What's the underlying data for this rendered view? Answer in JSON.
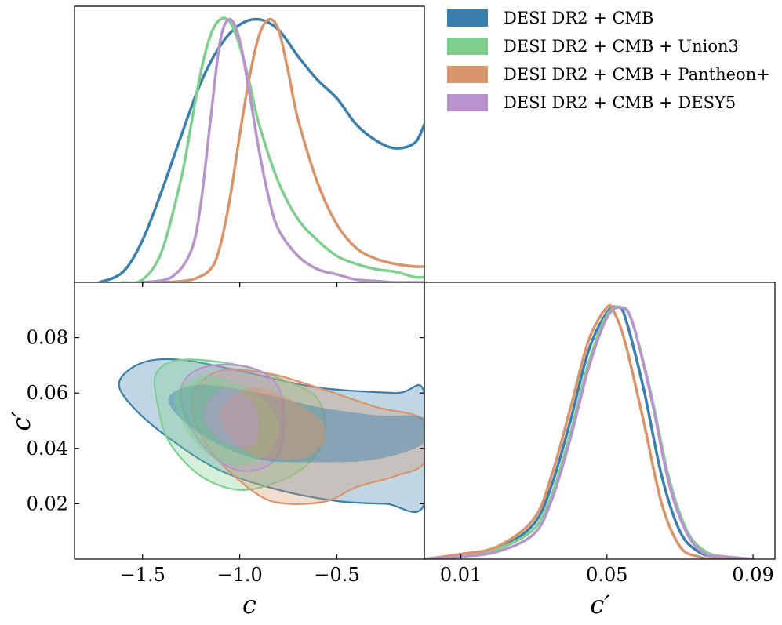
{
  "chart_data": {
    "type": "corner_plot",
    "parameters": [
      "c",
      "c'"
    ],
    "axis_labels": {
      "c": "c",
      "cprime": "c′"
    },
    "series": [
      {
        "name": "DESI DR2 + CMB",
        "color": "#3b7fad"
      },
      {
        "name": "DESI DR2 + CMB + Union3",
        "color": "#7fcf8f"
      },
      {
        "name": "DESI DR2 + CMB + Pantheon+",
        "color": "#d8946a"
      },
      {
        "name": "DESI DR2 + CMB + DESY5",
        "color": "#b994cc"
      }
    ],
    "panels": [
      {
        "id": "c_marginal",
        "type": "line",
        "x_range": [
          -1.85,
          -0.05
        ],
        "y_range": [
          0,
          1.05
        ],
        "series": [
          {
            "name": "DESI DR2 + CMB",
            "x": [
              -1.72,
              -1.6,
              -1.5,
              -1.4,
              -1.3,
              -1.2,
              -1.1,
              -1.0,
              -0.9,
              -0.8,
              -0.7,
              -0.6,
              -0.5,
              -0.4,
              -0.3,
              -0.2,
              -0.1,
              -0.05
            ],
            "y": [
              0,
              0.04,
              0.16,
              0.35,
              0.56,
              0.76,
              0.9,
              0.98,
              1.0,
              0.96,
              0.86,
              0.77,
              0.7,
              0.6,
              0.54,
              0.51,
              0.53,
              0.6
            ]
          },
          {
            "name": "DESI DR2 + CMB + Union3",
            "x": [
              -1.6,
              -1.5,
              -1.4,
              -1.3,
              -1.25,
              -1.2,
              -1.15,
              -1.1,
              -1.05,
              -1.0,
              -0.95,
              -0.9,
              -0.8,
              -0.7,
              -0.6,
              -0.5,
              -0.4,
              -0.3,
              -0.2,
              -0.1,
              -0.05
            ],
            "y": [
              0,
              0.01,
              0.12,
              0.4,
              0.6,
              0.8,
              0.94,
              1.0,
              0.99,
              0.9,
              0.76,
              0.6,
              0.38,
              0.24,
              0.16,
              0.1,
              0.07,
              0.05,
              0.04,
              0.02,
              0.02
            ]
          },
          {
            "name": "DESI DR2 + CMB + Pantheon+",
            "x": [
              -1.4,
              -1.25,
              -1.15,
              -1.1,
              -1.05,
              -1.0,
              -0.95,
              -0.9,
              -0.85,
              -0.8,
              -0.75,
              -0.7,
              -0.6,
              -0.5,
              -0.4,
              -0.3,
              -0.2,
              -0.1,
              -0.05
            ],
            "y": [
              0,
              0.01,
              0.05,
              0.14,
              0.32,
              0.56,
              0.78,
              0.94,
              1.0,
              0.96,
              0.8,
              0.62,
              0.38,
              0.22,
              0.13,
              0.09,
              0.07,
              0.06,
              0.06
            ]
          },
          {
            "name": "DESI DR2 + CMB + DESY5",
            "x": [
              -1.5,
              -1.35,
              -1.25,
              -1.2,
              -1.15,
              -1.1,
              -1.05,
              -1.0,
              -0.95,
              -0.9,
              -0.85,
              -0.8,
              -0.7,
              -0.6,
              -0.5,
              -0.4,
              -0.3,
              -0.2,
              -0.1,
              -0.05
            ],
            "y": [
              0,
              0.02,
              0.12,
              0.3,
              0.62,
              0.92,
              1.0,
              0.92,
              0.72,
              0.5,
              0.32,
              0.2,
              0.1,
              0.05,
              0.03,
              0.01,
              0.005,
              0,
              0,
              0
            ]
          }
        ]
      },
      {
        "id": "cprime_marginal",
        "type": "line",
        "x_range": [
          0.0,
          0.096
        ],
        "y_range": [
          0,
          1.1
        ],
        "series": [
          {
            "name": "DESI DR2 + CMB",
            "x": [
              0.0,
              0.01,
              0.02,
              0.03,
              0.035,
              0.04,
              0.045,
              0.05,
              0.053,
              0.055,
              0.06,
              0.065,
              0.07,
              0.075,
              0.08,
              0.09
            ],
            "y": [
              0,
              0.01,
              0.04,
              0.14,
              0.3,
              0.55,
              0.83,
              0.98,
              1.0,
              0.96,
              0.68,
              0.33,
              0.11,
              0.03,
              0.01,
              0
            ]
          },
          {
            "name": "DESI DR2 + CMB + Union3",
            "x": [
              0.0,
              0.01,
              0.02,
              0.03,
              0.035,
              0.04,
              0.045,
              0.05,
              0.054,
              0.057,
              0.062,
              0.067,
              0.072,
              0.077,
              0.082,
              0.09
            ],
            "y": [
              0,
              0.01,
              0.04,
              0.12,
              0.26,
              0.5,
              0.78,
              0.97,
              1.0,
              0.94,
              0.66,
              0.32,
              0.11,
              0.03,
              0.01,
              0
            ]
          },
          {
            "name": "DESI DR2 + CMB + Pantheon+",
            "x": [
              0.0,
              0.01,
              0.02,
              0.03,
              0.035,
              0.04,
              0.045,
              0.05,
              0.052,
              0.055,
              0.06,
              0.065,
              0.07,
              0.075,
              0.08,
              0.09
            ],
            "y": [
              0,
              0.02,
              0.05,
              0.16,
              0.34,
              0.6,
              0.87,
              1.0,
              0.98,
              0.86,
              0.55,
              0.22,
              0.05,
              0.01,
              0,
              0
            ]
          },
          {
            "name": "DESI DR2 + CMB + DESY5",
            "x": [
              0.0,
              0.01,
              0.02,
              0.03,
              0.035,
              0.04,
              0.045,
              0.05,
              0.054,
              0.057,
              0.062,
              0.067,
              0.072,
              0.077,
              0.082,
              0.09
            ],
            "y": [
              0,
              0.01,
              0.03,
              0.1,
              0.24,
              0.48,
              0.76,
              0.96,
              1.0,
              0.94,
              0.65,
              0.3,
              0.1,
              0.02,
              0.01,
              0
            ]
          }
        ]
      },
      {
        "id": "joint_c_cprime",
        "type": "contour",
        "x_range": [
          -1.85,
          -0.05
        ],
        "y_range": [
          0.0,
          0.1
        ],
        "levels": [
          "68%",
          "95%"
        ],
        "series": [
          {
            "name": "DESI DR2 + CMB",
            "outer": [
              [
                -1.62,
                0.064
              ],
              [
                -1.5,
                0.071
              ],
              [
                -1.3,
                0.072
              ],
              [
                -1.0,
                0.068
              ],
              [
                -0.6,
                0.062
              ],
              [
                -0.2,
                0.06
              ],
              [
                -0.05,
                0.06
              ],
              [
                -0.05,
                0.02
              ],
              [
                -0.25,
                0.02
              ],
              [
                -0.5,
                0.021
              ],
              [
                -0.8,
                0.025
              ],
              [
                -1.1,
                0.032
              ],
              [
                -1.35,
                0.043
              ],
              [
                -1.55,
                0.055
              ]
            ],
            "inner": [
              [
                -1.36,
                0.059
              ],
              [
                -1.2,
                0.063
              ],
              [
                -0.9,
                0.06
              ],
              [
                -0.6,
                0.055
              ],
              [
                -0.3,
                0.052
              ],
              [
                -0.05,
                0.051
              ],
              [
                -0.05,
                0.042
              ],
              [
                -0.3,
                0.036
              ],
              [
                -0.6,
                0.035
              ],
              [
                -0.9,
                0.036
              ],
              [
                -1.15,
                0.043
              ],
              [
                -1.32,
                0.052
              ]
            ]
          },
          {
            "name": "DESI DR2 + CMB + Union3",
            "outer": [
              [
                -1.43,
                0.067
              ],
              [
                -1.3,
                0.072
              ],
              [
                -1.0,
                0.07
              ],
              [
                -0.75,
                0.064
              ],
              [
                -0.6,
                0.058
              ],
              [
                -0.56,
                0.046
              ],
              [
                -0.64,
                0.035
              ],
              [
                -0.8,
                0.028
              ],
              [
                -1.0,
                0.025
              ],
              [
                -1.2,
                0.03
              ],
              [
                -1.36,
                0.042
              ],
              [
                -1.42,
                0.055
              ]
            ],
            "inner": [
              [
                -1.33,
                0.06
              ],
              [
                -1.2,
                0.066
              ],
              [
                -1.0,
                0.063
              ],
              [
                -0.84,
                0.055
              ],
              [
                -0.8,
                0.045
              ],
              [
                -0.9,
                0.036
              ],
              [
                -1.05,
                0.034
              ],
              [
                -1.2,
                0.04
              ],
              [
                -1.3,
                0.05
              ]
            ]
          },
          {
            "name": "DESI DR2 + CMB + Pantheon+",
            "outer": [
              [
                -1.24,
                0.06
              ],
              [
                -1.1,
                0.068
              ],
              [
                -0.85,
                0.067
              ],
              [
                -0.6,
                0.062
              ],
              [
                -0.3,
                0.055
              ],
              [
                -0.05,
                0.05
              ],
              [
                -0.05,
                0.035
              ],
              [
                -0.2,
                0.03
              ],
              [
                -0.4,
                0.026
              ],
              [
                -0.55,
                0.021
              ],
              [
                -0.75,
                0.02
              ],
              [
                -0.9,
                0.023
              ],
              [
                -1.1,
                0.035
              ],
              [
                -1.22,
                0.048
              ]
            ],
            "inner": [
              [
                -1.1,
                0.054
              ],
              [
                -0.95,
                0.062
              ],
              [
                -0.75,
                0.058
              ],
              [
                -0.58,
                0.05
              ],
              [
                -0.56,
                0.043
              ],
              [
                -0.65,
                0.037
              ],
              [
                -0.8,
                0.036
              ],
              [
                -0.95,
                0.038
              ],
              [
                -1.07,
                0.046
              ]
            ]
          },
          {
            "name": "DESI DR2 + CMB + DESY5",
            "outer": [
              [
                -1.3,
                0.062
              ],
              [
                -1.2,
                0.069
              ],
              [
                -1.0,
                0.07
              ],
              [
                -0.85,
                0.066
              ],
              [
                -0.78,
                0.058
              ],
              [
                -0.78,
                0.042
              ],
              [
                -0.85,
                0.034
              ],
              [
                -1.0,
                0.032
              ],
              [
                -1.15,
                0.038
              ],
              [
                -1.27,
                0.05
              ]
            ],
            "inner": [
              [
                -1.18,
                0.055
              ],
              [
                -1.08,
                0.062
              ],
              [
                -0.95,
                0.058
              ],
              [
                -0.9,
                0.05
              ],
              [
                -0.92,
                0.042
              ],
              [
                -1.0,
                0.04
              ],
              [
                -1.12,
                0.044
              ],
              [
                -1.18,
                0.05
              ]
            ]
          }
        ]
      }
    ],
    "ticks": {
      "c_axis": [
        -1.5,
        -1.0,
        -0.5
      ],
      "c_labels": [
        "−1.5",
        "−1.0",
        "−0.5"
      ],
      "cprime_y": [
        0.02,
        0.04,
        0.06,
        0.08
      ],
      "cprime_y_labels": [
        "0.02",
        "0.04",
        "0.06",
        "0.08"
      ],
      "cprime_x": [
        0.01,
        0.05,
        0.09
      ],
      "cprime_x_labels": [
        "0.01",
        "0.05",
        "0.09"
      ]
    },
    "legend_position": "top-right"
  }
}
